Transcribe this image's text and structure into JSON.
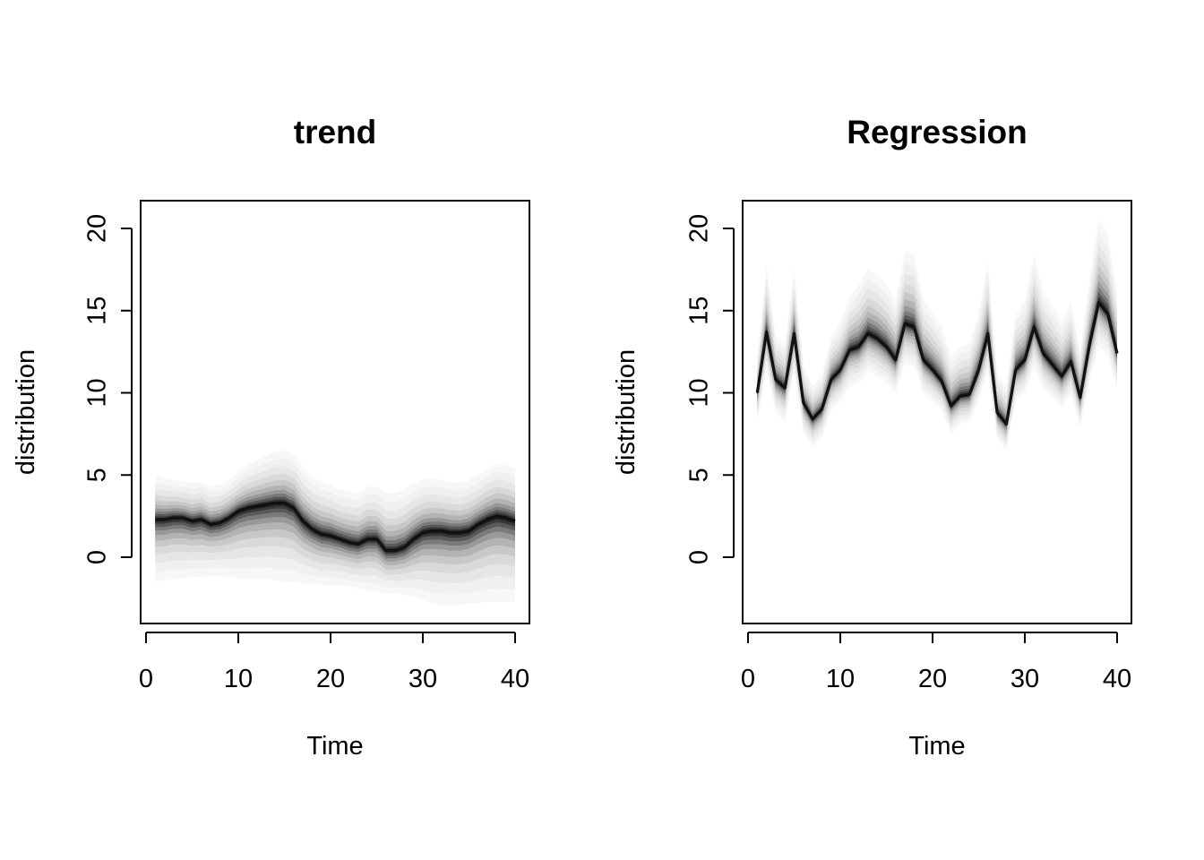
{
  "chart_data": [
    {
      "type": "area",
      "title": "trend",
      "xlabel": "Time",
      "ylabel": "distribution",
      "xlim": [
        0,
        40
      ],
      "ylim": [
        -4,
        21
      ],
      "xticks": [
        0,
        10,
        20,
        30,
        40
      ],
      "yticks": [
        0,
        5,
        10,
        15,
        20
      ],
      "grid": false,
      "legend": "none",
      "x": [
        1,
        2,
        3,
        4,
        5,
        6,
        7,
        8,
        9,
        10,
        11,
        12,
        13,
        14,
        15,
        16,
        17,
        18,
        19,
        20,
        21,
        22,
        23,
        24,
        25,
        26,
        27,
        28,
        29,
        30,
        31,
        32,
        33,
        34,
        35,
        36,
        37,
        38,
        39,
        40
      ],
      "median": [
        2.3,
        2.3,
        2.4,
        2.4,
        2.2,
        2.3,
        2.0,
        2.1,
        2.4,
        2.8,
        3.0,
        3.1,
        3.2,
        3.3,
        3.3,
        3.0,
        2.2,
        1.7,
        1.4,
        1.3,
        1.1,
        0.9,
        0.8,
        1.1,
        1.1,
        0.4,
        0.4,
        0.6,
        1.1,
        1.5,
        1.6,
        1.6,
        1.5,
        1.5,
        1.6,
        2.0,
        2.3,
        2.5,
        2.4,
        2.2
      ],
      "q_lower": [
        -1.5,
        -1.4,
        -1.3,
        -1.3,
        -1.2,
        -1.2,
        -1.1,
        -1.1,
        -1.2,
        -1.3,
        -1.3,
        -1.3,
        -1.3,
        -1.4,
        -1.5,
        -1.5,
        -1.6,
        -1.6,
        -1.7,
        -1.7,
        -1.7,
        -1.8,
        -1.9,
        -2.0,
        -2.1,
        -2.2,
        -2.2,
        -2.3,
        -2.4,
        -2.6,
        -2.8,
        -2.9,
        -2.9,
        -2.9,
        -2.8,
        -2.8,
        -2.7,
        -2.7,
        -2.7,
        -2.7
      ],
      "q_upper": [
        5.0,
        4.8,
        4.7,
        4.6,
        4.5,
        4.6,
        4.3,
        4.4,
        4.7,
        5.2,
        5.6,
        5.9,
        6.2,
        6.4,
        6.5,
        6.3,
        5.5,
        4.9,
        4.6,
        4.4,
        4.1,
        4.0,
        3.9,
        4.3,
        4.3,
        3.9,
        3.9,
        4.1,
        4.5,
        4.7,
        4.8,
        4.7,
        4.6,
        4.5,
        4.7,
        5.0,
        5.4,
        5.7,
        5.6,
        5.4
      ]
    },
    {
      "type": "area",
      "title": "Regression",
      "xlabel": "Time",
      "ylabel": "distribution",
      "xlim": [
        0,
        40
      ],
      "ylim": [
        -4,
        21
      ],
      "xticks": [
        0,
        10,
        20,
        30,
        40
      ],
      "yticks": [
        0,
        5,
        10,
        15,
        20
      ],
      "grid": false,
      "legend": "none",
      "x": [
        1,
        2,
        3,
        4,
        5,
        6,
        7,
        8,
        9,
        10,
        11,
        12,
        13,
        14,
        15,
        16,
        17,
        18,
        19,
        20,
        21,
        22,
        23,
        24,
        25,
        26,
        27,
        28,
        29,
        30,
        31,
        32,
        33,
        34,
        35,
        36,
        37,
        38,
        39,
        40
      ],
      "median": [
        10.0,
        13.7,
        10.8,
        10.3,
        13.6,
        9.4,
        8.4,
        9.0,
        10.8,
        11.4,
        12.6,
        12.8,
        13.6,
        13.3,
        12.8,
        12.0,
        14.2,
        14.0,
        12.0,
        11.4,
        10.7,
        9.2,
        9.8,
        9.9,
        11.4,
        13.6,
        8.8,
        8.1,
        11.4,
        12.0,
        14.0,
        12.4,
        11.7,
        11.0,
        11.9,
        9.7,
        12.9,
        15.5,
        14.8,
        12.4
      ],
      "q_lower": [
        8.2,
        11.4,
        8.8,
        8.3,
        11.2,
        7.6,
        6.7,
        7.3,
        8.9,
        9.5,
        10.4,
        10.6,
        11.3,
        11.0,
        10.6,
        10.0,
        11.8,
        11.6,
        10.0,
        9.5,
        8.9,
        7.5,
        8.1,
        8.2,
        9.5,
        11.3,
        7.2,
        6.5,
        9.5,
        10.0,
        11.6,
        10.3,
        9.7,
        9.1,
        9.9,
        7.9,
        10.7,
        12.9,
        12.3,
        10.2
      ],
      "q_upper": [
        12.1,
        17.8,
        13.5,
        13.0,
        17.6,
        11.7,
        10.4,
        11.1,
        13.4,
        14.3,
        15.8,
        16.6,
        17.5,
        17.2,
        16.6,
        15.6,
        18.6,
        18.4,
        15.7,
        14.9,
        14.0,
        12.2,
        12.8,
        13.0,
        14.9,
        18.0,
        11.2,
        10.4,
        14.8,
        15.6,
        18.4,
        16.2,
        15.3,
        14.4,
        15.5,
        12.6,
        16.9,
        20.6,
        19.6,
        16.1
      ]
    }
  ]
}
